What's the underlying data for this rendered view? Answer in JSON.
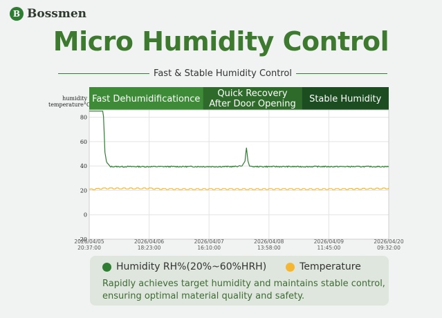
{
  "brand": {
    "name": "Bossmen",
    "mark": "B"
  },
  "title": "Micro Humidity Control",
  "subtitle": "Fast & Stable Humidity Control",
  "axis_title": {
    "line1": "humidity",
    "line2": "temperature°C"
  },
  "phases": [
    {
      "label": "Fast Dehumidificationce",
      "color": "#3d8b37"
    },
    {
      "label": "Quick Recovery\nAfter Door Opening",
      "color": "#2e6b2a"
    },
    {
      "label": "Stable Humidity",
      "color": "#1b4d20"
    }
  ],
  "legend": {
    "humidity": "Humidity RH%(20%~60%HRH)",
    "temperature": "Temperature",
    "humidity_color": "#2e7d32",
    "temperature_color": "#f5b731"
  },
  "description": "Rapidly achieves target humidity and maintains stable control, ensuring optimal material quality and safety.",
  "chart_data": {
    "type": "line",
    "x_tick_labels": [
      [
        "2026/04/05",
        "20:37:00"
      ],
      [
        "2026/04/06",
        "18:23:00"
      ],
      [
        "2026/04/07",
        "16:10:00"
      ],
      [
        "2026/04/08",
        "13:58:00"
      ],
      [
        "2026/04/09",
        "11:45:00"
      ],
      [
        "2026/04/20",
        "09:32:00"
      ]
    ],
    "y_ticks": [
      -20,
      0,
      20,
      40,
      60,
      80
    ],
    "ylim": [
      -20,
      86
    ],
    "grid": true,
    "series": [
      {
        "name": "Humidity RH%(20%~60%HRH)",
        "color": "#2e7d32",
        "points": [
          [
            0,
            85
          ],
          [
            0.045,
            85
          ],
          [
            0.048,
            80
          ],
          [
            0.052,
            52
          ],
          [
            0.058,
            43
          ],
          [
            0.07,
            39.5
          ],
          [
            0.2,
            39.5
          ],
          [
            0.35,
            39.5
          ],
          [
            0.48,
            39.5
          ],
          [
            0.51,
            40
          ],
          [
            0.52,
            44
          ],
          [
            0.525,
            55
          ],
          [
            0.53,
            44
          ],
          [
            0.535,
            40
          ],
          [
            0.55,
            39.5
          ],
          [
            0.7,
            39.5
          ],
          [
            0.85,
            39.5
          ],
          [
            1.0,
            39.5
          ]
        ]
      },
      {
        "name": "Temperature",
        "color": "#f5b731",
        "points": [
          [
            0,
            20.5
          ],
          [
            0.02,
            21
          ],
          [
            0.05,
            21.5
          ],
          [
            0.2,
            21.5
          ],
          [
            0.25,
            21
          ],
          [
            0.4,
            21
          ],
          [
            0.55,
            21
          ],
          [
            0.7,
            21
          ],
          [
            0.85,
            21
          ],
          [
            1.0,
            21.5
          ]
        ]
      }
    ]
  }
}
